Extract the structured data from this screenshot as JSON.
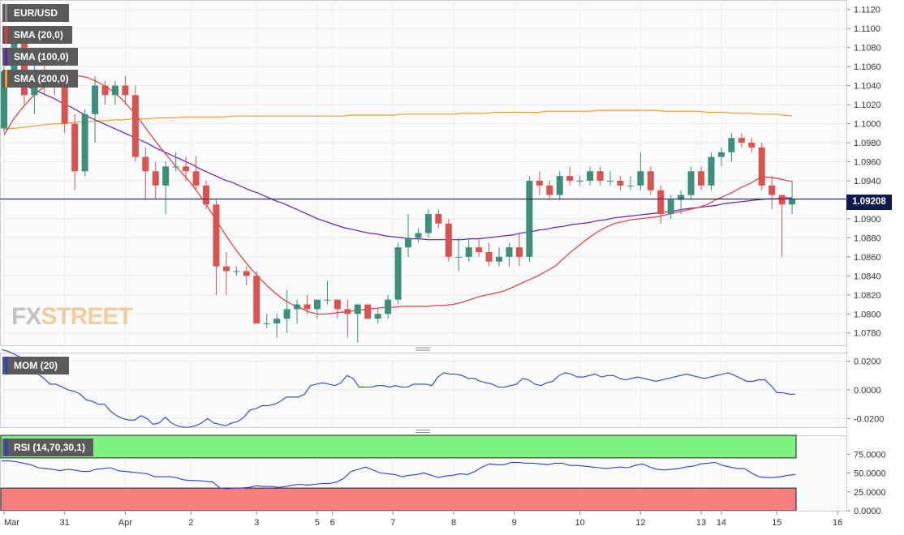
{
  "chart_data": {
    "type": "candlestick",
    "symbol": "EUR/USD",
    "last_price": "1.09208",
    "indicators": {
      "sma20": {
        "label": "SMA (20,0)",
        "color": "#e53935",
        "values": [
          1.0988,
          1.1003,
          1.1015,
          1.1025,
          1.1034,
          1.104,
          1.1044,
          1.1048,
          1.105,
          1.105,
          1.1048,
          1.1044,
          1.1039,
          1.1033,
          1.1025,
          1.1015,
          1.1004,
          1.0992,
          1.098,
          1.0969,
          1.0958,
          1.0948,
          1.0938,
          1.0926,
          1.0913,
          1.0899,
          1.0885,
          1.0872,
          1.086,
          1.0849,
          1.0839,
          1.083,
          1.0822,
          1.0815,
          1.081,
          1.0806,
          1.0802,
          1.08,
          1.08,
          1.0801,
          1.0802,
          1.0803,
          1.0804,
          1.0805,
          1.0806,
          1.0807,
          1.0807,
          1.0808,
          1.0808,
          1.0808,
          1.0808,
          1.0809,
          1.0809,
          1.081,
          1.0812,
          1.0815,
          1.0818,
          1.082,
          1.0822,
          1.0824,
          1.0828,
          1.0832,
          1.0836,
          1.084,
          1.0845,
          1.085,
          1.0858,
          1.0866,
          1.0873,
          1.088,
          1.0886,
          1.0891,
          1.0895,
          1.0897,
          1.0899,
          1.09,
          1.0901,
          1.0902,
          1.0904,
          1.0906,
          1.0908,
          1.091,
          1.0912,
          1.0915,
          1.092,
          1.0924,
          1.0928,
          1.0933,
          1.0937,
          1.0942,
          1.0944,
          1.0943,
          1.0941,
          1.0939
        ]
      },
      "sma100": {
        "label": "SMA (100,0)",
        "color": "#6a1bbf",
        "values": [
          1.105,
          1.1046,
          1.1042,
          1.1038,
          1.1034,
          1.103,
          1.1026,
          1.1021,
          1.1017,
          1.1012,
          1.1007,
          1.1003,
          1.0999,
          1.0995,
          1.0991,
          1.0987,
          1.0983,
          1.0979,
          1.0974,
          1.097,
          1.0966,
          1.0962,
          1.0958,
          1.0953,
          1.0949,
          1.0945,
          1.0941,
          1.0938,
          1.0934,
          1.093,
          1.0927,
          1.0923,
          1.0919,
          1.0916,
          1.0912,
          1.0908,
          1.0904,
          1.09,
          1.0897,
          1.0894,
          1.0891,
          1.0889,
          1.0887,
          1.0885,
          1.0884,
          1.0882,
          1.0881,
          1.088,
          1.0879,
          1.0879,
          1.0878,
          1.0878,
          1.0878,
          1.0878,
          1.0878,
          1.0879,
          1.0879,
          1.088,
          1.0881,
          1.0882,
          1.0883,
          1.0885,
          1.0886,
          1.0888,
          1.0889,
          1.0891,
          1.0892,
          1.0894,
          1.0895,
          1.0896,
          1.0898,
          1.0899,
          1.0901,
          1.0902,
          1.0903,
          1.0904,
          1.0905,
          1.0906,
          1.0907,
          1.0908,
          1.091,
          1.0911,
          1.0912,
          1.0913,
          1.0914,
          1.0916,
          1.0917,
          1.0918,
          1.0919,
          1.092,
          1.0921,
          1.0921,
          1.0922,
          1.0922
        ]
      },
      "sma200": {
        "label": "SMA (200,0)",
        "color": "#f29b2f",
        "values": [
          1.0994,
          1.0995,
          1.0996,
          1.0997,
          1.0998,
          1.0999,
          1.1,
          1.1,
          1.1001,
          1.1002,
          1.1002,
          1.1003,
          1.1003,
          1.1004,
          1.1004,
          1.1005,
          1.1005,
          1.1005,
          1.1006,
          1.1006,
          1.1006,
          1.1007,
          1.1007,
          1.1007,
          1.1007,
          1.1007,
          1.1007,
          1.1008,
          1.1008,
          1.1008,
          1.1008,
          1.1008,
          1.1008,
          1.1008,
          1.1008,
          1.1008,
          1.1008,
          1.1008,
          1.1008,
          1.1008,
          1.1008,
          1.1009,
          1.1009,
          1.1009,
          1.1009,
          1.1009,
          1.1009,
          1.101,
          1.101,
          1.101,
          1.101,
          1.101,
          1.101,
          1.101,
          1.1011,
          1.1011,
          1.1011,
          1.1011,
          1.1012,
          1.1012,
          1.1012,
          1.1012,
          1.1012,
          1.1012,
          1.1013,
          1.1013,
          1.1013,
          1.1013,
          1.1013,
          1.1013,
          1.1014,
          1.1014,
          1.1014,
          1.1014,
          1.1014,
          1.1014,
          1.1014,
          1.1014,
          1.1013,
          1.1013,
          1.1013,
          1.1013,
          1.1013,
          1.1012,
          1.1012,
          1.1012,
          1.1011,
          1.1011,
          1.1011,
          1.101,
          1.101,
          1.101,
          1.1009,
          1.1008
        ]
      }
    },
    "ohlc": [
      [
        1.0995,
        1.106,
        1.099,
        1.1055
      ],
      [
        1.1055,
        1.11,
        1.104,
        1.1085
      ],
      [
        1.1085,
        1.109,
        1.102,
        1.103
      ],
      [
        1.103,
        1.1065,
        1.101,
        1.1055
      ],
      [
        1.1055,
        1.107,
        1.103,
        1.1045
      ],
      [
        1.1045,
        1.1055,
        1.103,
        1.104
      ],
      [
        1.104,
        1.105,
        1.099,
        1.1
      ],
      [
        1.1,
        1.101,
        1.093,
        1.095
      ],
      [
        1.095,
        1.1015,
        1.0945,
        1.101
      ],
      [
        1.101,
        1.105,
        1.098,
        1.104
      ],
      [
        1.104,
        1.1045,
        1.102,
        1.103
      ],
      [
        1.103,
        1.1045,
        1.102,
        1.104
      ],
      [
        1.104,
        1.105,
        1.102,
        1.103
      ],
      [
        1.103,
        1.104,
        1.096,
        1.0965
      ],
      [
        1.0965,
        1.0975,
        1.092,
        1.095
      ],
      [
        1.095,
        1.096,
        1.092,
        1.0935
      ],
      [
        1.0935,
        1.096,
        1.0905,
        1.0955
      ],
      [
        1.0955,
        1.097,
        1.095,
        1.0955
      ],
      [
        1.0955,
        1.0965,
        1.094,
        1.095
      ],
      [
        1.095,
        1.0965,
        1.093,
        1.0935
      ],
      [
        1.0935,
        1.094,
        1.091,
        1.0915
      ],
      [
        1.0915,
        1.092,
        1.082,
        1.085
      ],
      [
        1.085,
        1.0865,
        1.082,
        1.0845
      ],
      [
        1.0845,
        1.085,
        1.084,
        1.0845
      ],
      [
        1.0845,
        1.085,
        1.083,
        1.084
      ],
      [
        1.084,
        1.0845,
        1.079,
        1.079
      ],
      [
        1.079,
        1.08,
        1.0785,
        1.079
      ],
      [
        1.079,
        1.08,
        1.0775,
        1.0795
      ],
      [
        1.0795,
        1.0825,
        1.078,
        1.0805
      ],
      [
        1.0805,
        1.0815,
        1.079,
        1.081
      ],
      [
        1.081,
        1.082,
        1.08,
        1.0805
      ],
      [
        1.0805,
        1.0815,
        1.0795,
        1.0815
      ],
      [
        1.0815,
        1.0835,
        1.081,
        1.0815
      ],
      [
        1.0815,
        1.0815,
        1.0795,
        1.0805
      ],
      [
        1.0805,
        1.0815,
        1.0775,
        1.08
      ],
      [
        1.08,
        1.081,
        1.077,
        1.081
      ],
      [
        1.081,
        1.081,
        1.0795,
        1.0795
      ],
      [
        1.0795,
        1.0805,
        1.079,
        1.08
      ],
      [
        1.08,
        1.082,
        1.0795,
        1.0815
      ],
      [
        1.0815,
        1.0875,
        1.081,
        1.087
      ],
      [
        1.087,
        1.0905,
        1.086,
        1.088
      ],
      [
        1.088,
        1.089,
        1.0875,
        1.0885
      ],
      [
        1.0885,
        1.091,
        1.088,
        1.0905
      ],
      [
        1.0905,
        1.091,
        1.089,
        1.0895
      ],
      [
        1.0895,
        1.09,
        1.0855,
        1.086
      ],
      [
        1.086,
        1.088,
        1.0845,
        1.086
      ],
      [
        1.086,
        1.088,
        1.0855,
        1.087
      ],
      [
        1.087,
        1.088,
        1.086,
        1.0865
      ],
      [
        1.0865,
        1.0875,
        1.085,
        1.0855
      ],
      [
        1.0855,
        1.087,
        1.085,
        1.086
      ],
      [
        1.086,
        1.0875,
        1.085,
        1.087
      ],
      [
        1.087,
        1.0885,
        1.085,
        1.086
      ],
      [
        1.086,
        1.0945,
        1.0855,
        1.094
      ],
      [
        1.094,
        1.095,
        1.0925,
        1.0935
      ],
      [
        1.0935,
        1.094,
        1.092,
        1.0925
      ],
      [
        1.0925,
        1.095,
        1.092,
        1.0945
      ],
      [
        1.0945,
        1.0955,
        1.0935,
        1.094
      ],
      [
        1.094,
        1.0945,
        1.0935,
        1.094
      ],
      [
        1.094,
        1.0955,
        1.0935,
        1.095
      ],
      [
        1.095,
        1.0955,
        1.0935,
        1.094
      ],
      [
        1.094,
        1.095,
        1.0935,
        1.094
      ],
      [
        1.094,
        1.0945,
        1.093,
        1.0935
      ],
      [
        1.0935,
        1.0945,
        1.093,
        1.0935
      ],
      [
        1.0935,
        1.097,
        1.093,
        1.095
      ],
      [
        1.095,
        1.0955,
        1.0925,
        1.093
      ],
      [
        1.093,
        1.0935,
        1.0895,
        1.0905
      ],
      [
        1.0905,
        1.0925,
        1.09,
        1.092
      ],
      [
        1.092,
        1.093,
        1.0905,
        1.0925
      ],
      [
        1.0925,
        1.0955,
        1.092,
        1.095
      ],
      [
        1.095,
        1.0955,
        1.093,
        1.0935
      ],
      [
        1.0935,
        1.097,
        1.093,
        1.0965
      ],
      [
        1.0965,
        1.0975,
        1.0955,
        1.097
      ],
      [
        1.097,
        1.099,
        1.096,
        1.0985
      ],
      [
        1.0985,
        1.099,
        1.0975,
        1.098
      ],
      [
        1.098,
        1.0985,
        1.097,
        1.0975
      ],
      [
        1.0975,
        1.098,
        1.093,
        1.0935
      ],
      [
        1.0935,
        1.0945,
        1.091,
        1.0925
      ],
      [
        1.0925,
        1.0925,
        1.086,
        1.0915
      ],
      [
        1.0915,
        1.094,
        1.0905,
        1.0921
      ]
    ],
    "price_axis": {
      "min": 1.0767,
      "max": 1.113,
      "ticks": [
        "1.1120",
        "1.1100",
        "1.1080",
        "1.1060",
        "1.1040",
        "1.1020",
        "1.1000",
        "1.0980",
        "1.0960",
        "1.0940",
        "1.0920",
        "1.0900",
        "1.0880",
        "1.0860",
        "1.0840",
        "1.0820",
        "1.0800",
        "1.0780"
      ]
    },
    "x_axis": {
      "labels": [
        {
          "text": "Mar",
          "index": 0
        },
        {
          "text": "31",
          "index": 6
        },
        {
          "text": "Apr",
          "index": 12
        },
        {
          "text": "2",
          "index": 18.5
        },
        {
          "text": "3",
          "index": 25
        },
        {
          "text": "5",
          "index": 31
        },
        {
          "text": "6",
          "index": 32.5
        },
        {
          "text": "7",
          "index": 38.5
        },
        {
          "text": "8",
          "index": 44.5
        },
        {
          "text": "9",
          "index": 50.5
        },
        {
          "text": "10",
          "index": 57
        },
        {
          "text": "12",
          "index": 63
        },
        {
          "text": "13",
          "index": 69
        },
        {
          "text": "14",
          "index": 71
        },
        {
          "text": "15",
          "index": 76.5
        },
        {
          "text": "16",
          "index": 82.5
        }
      ]
    },
    "momentum": {
      "label": "MOM (20)",
      "color": "#2b3fd6",
      "min": -0.026,
      "max": 0.026,
      "ticks": [
        "0.0200",
        "0.0000",
        "-0.0200"
      ],
      "values": [
        0.028,
        0.027,
        0.025,
        0.023,
        0.018,
        0.013,
        0.011,
        0.008,
        0.004,
        0.004,
        0.002,
        0.0,
        -0.001,
        -0.003,
        -0.007,
        -0.008,
        -0.01,
        -0.01,
        -0.015,
        -0.018,
        -0.02,
        -0.021,
        -0.021,
        -0.018,
        -0.02,
        -0.024,
        -0.023,
        -0.019,
        -0.023,
        -0.025,
        -0.026,
        -0.026,
        -0.025,
        -0.023,
        -0.02,
        -0.023,
        -0.024,
        -0.025,
        -0.023,
        -0.022,
        -0.019,
        -0.014,
        -0.013,
        -0.011,
        -0.011,
        -0.01,
        -0.008,
        -0.005,
        -0.005,
        -0.005,
        -0.003,
        0.003,
        0.004,
        0.005,
        0.004,
        0.003,
        0.005,
        0.01,
        0.008,
        0.002,
        0.002,
        0.002,
        0.003,
        0.003,
        0.002,
        0.003,
        0.002,
        0.002,
        0.004,
        0.004,
        0.004,
        0.003,
        0.009,
        0.012,
        0.011,
        0.011,
        0.01,
        0.008,
        0.008,
        0.006,
        0.005,
        0.004,
        0.002,
        0.002,
        0.003,
        0.004,
        0.008,
        0.007,
        0.004,
        0.003,
        0.005,
        0.006,
        0.01,
        0.012,
        0.011,
        0.009,
        0.009,
        0.01,
        0.011,
        0.009,
        0.01,
        0.01,
        0.008,
        0.007,
        0.008,
        0.009,
        0.008,
        0.007,
        0.006,
        0.007,
        0.008,
        0.009,
        0.01,
        0.011,
        0.01,
        0.009,
        0.008,
        0.009,
        0.01,
        0.011,
        0.012,
        0.01,
        0.008,
        0.006,
        0.006,
        0.007,
        0.007,
        0.003,
        -0.002,
        -0.002,
        -0.003,
        -0.003
      ]
    },
    "rsi": {
      "label": "RSI (14,70,30,1)",
      "color": "#2b3fd6",
      "min": 0,
      "max": 100,
      "overbought": 70,
      "oversold": 30,
      "ticks": [
        "75.0000",
        "50.0000",
        "25.0000",
        "0.0000"
      ],
      "values": [
        66,
        66,
        65,
        63,
        61,
        57,
        56,
        55,
        53,
        55,
        54,
        52,
        52,
        55,
        56,
        57,
        53,
        52,
        51,
        50,
        49,
        45,
        45,
        45,
        44,
        41,
        40,
        40,
        39,
        38,
        30,
        29,
        30,
        30,
        31,
        33,
        32,
        32,
        31,
        32,
        34,
        35,
        34,
        35,
        36,
        36,
        38,
        43,
        52,
        55,
        58,
        54,
        50,
        49,
        48,
        45,
        47,
        48,
        50,
        47,
        44,
        46,
        47,
        49,
        48,
        52,
        58,
        62,
        61,
        61,
        64,
        64,
        63,
        63,
        62,
        61,
        63,
        63,
        60,
        60,
        59,
        58,
        57,
        56,
        57,
        58,
        57,
        60,
        62,
        58,
        55,
        54,
        55,
        56,
        58,
        59,
        62,
        63,
        64,
        60,
        58,
        56,
        56,
        50,
        45,
        44,
        44,
        45,
        47,
        48
      ]
    }
  }
}
